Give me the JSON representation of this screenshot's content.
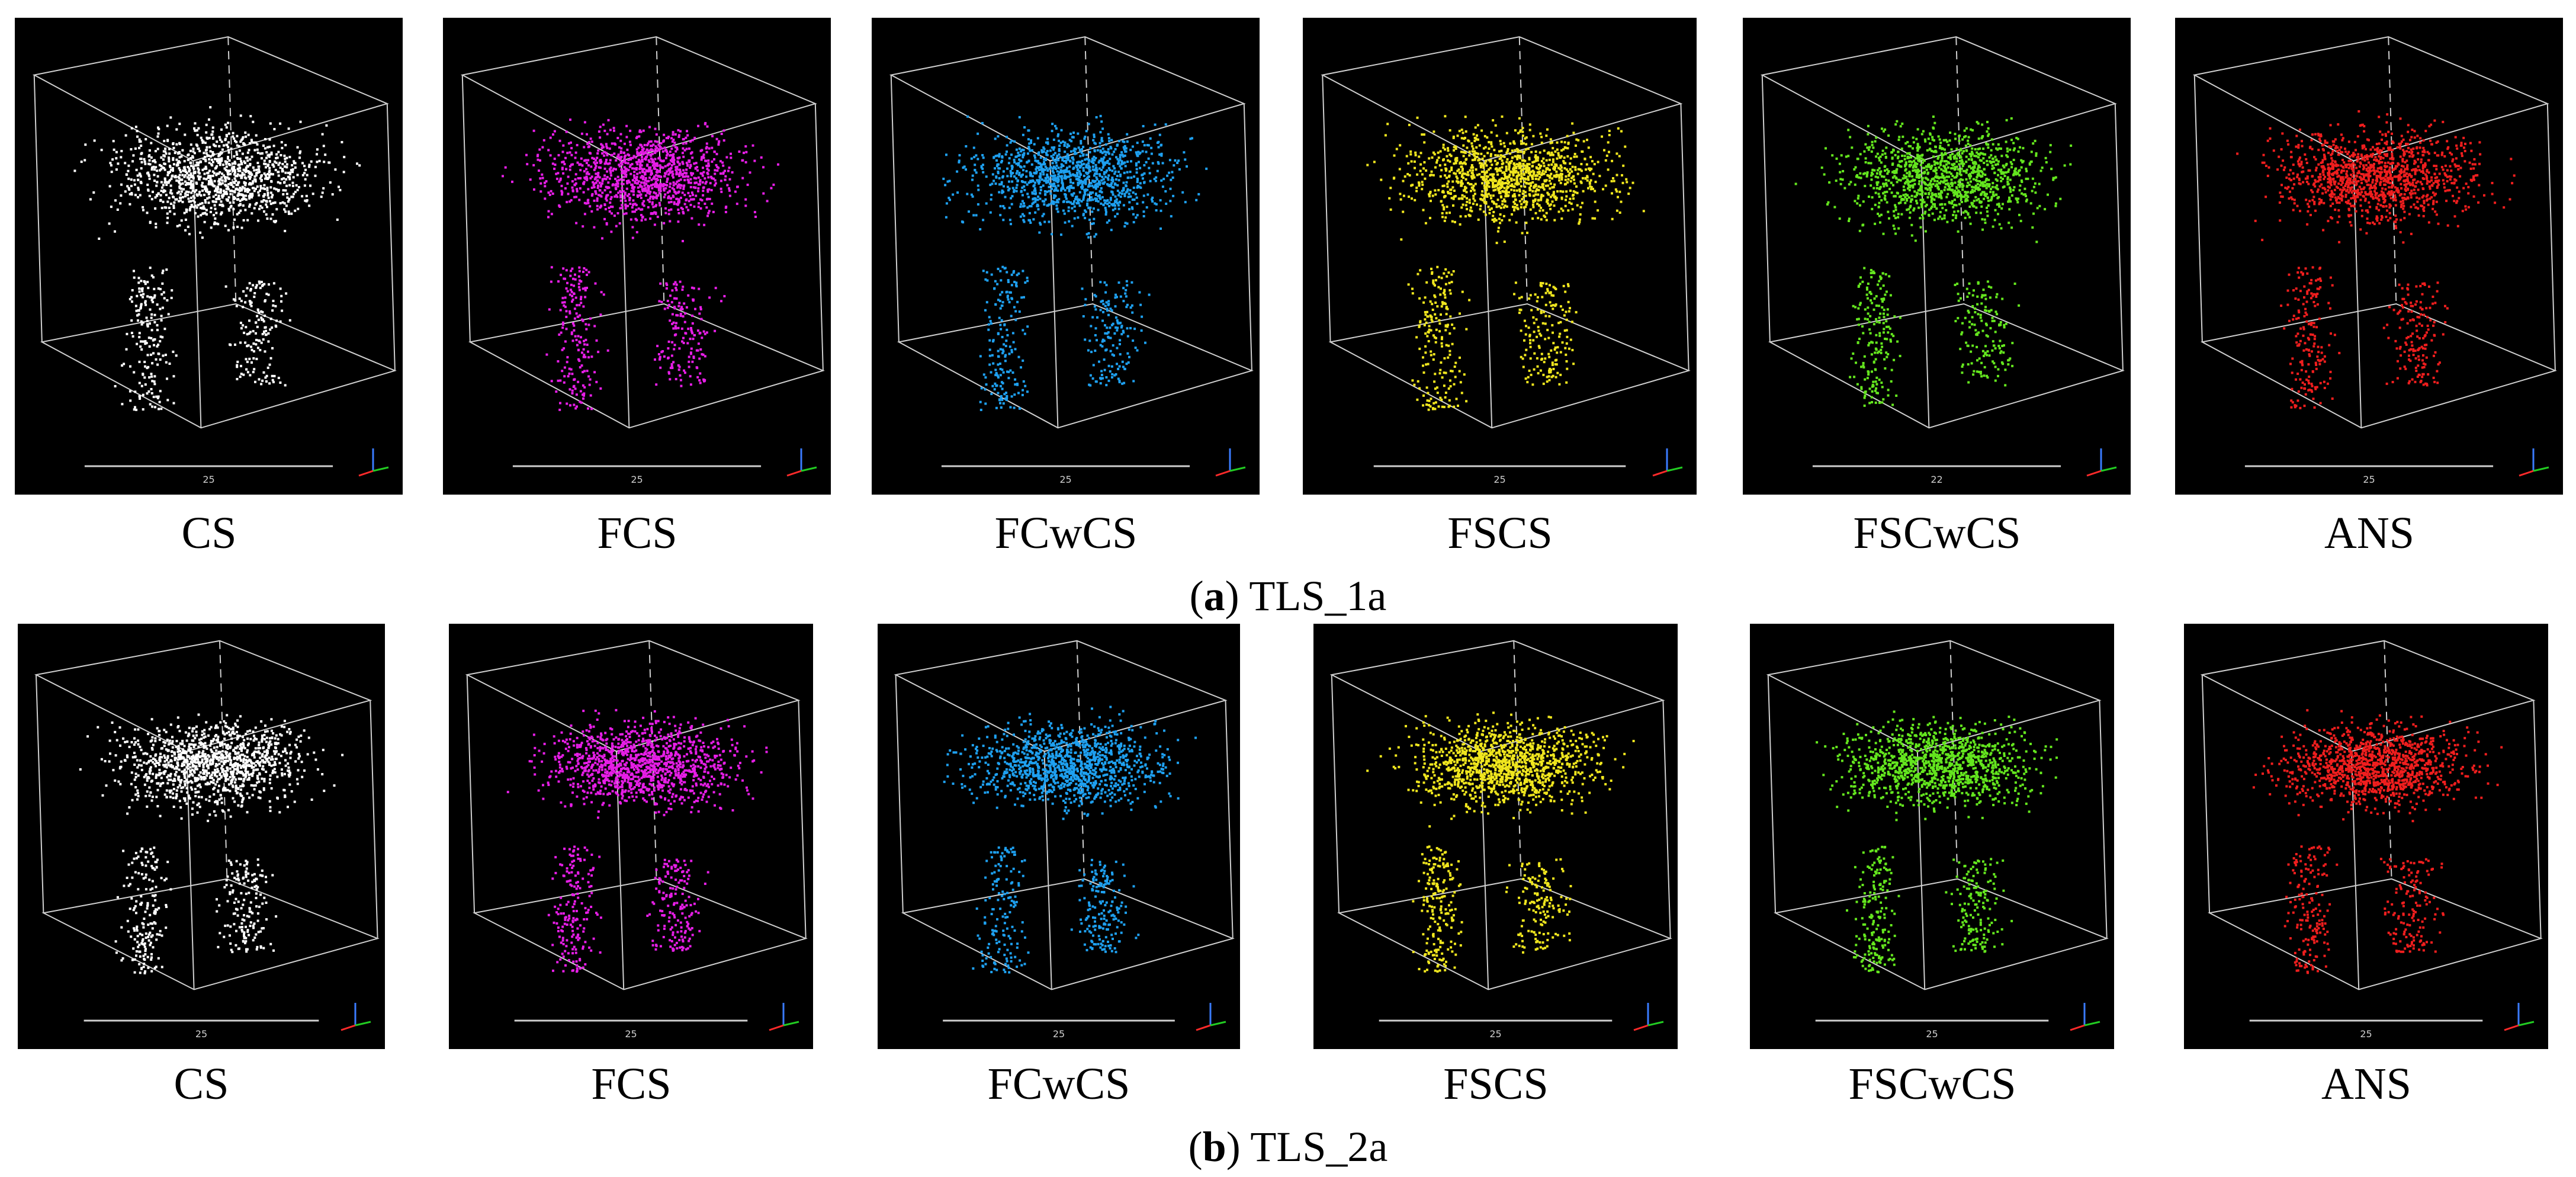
{
  "rows": [
    {
      "caption": {
        "letter": "a",
        "text": "TLS_1a"
      },
      "panels": [
        {
          "label": "CS",
          "color": "#ffffff",
          "scale_text": "25",
          "seed": 11
        },
        {
          "label": "FCS",
          "color": "#e61ee6",
          "scale_text": "25",
          "seed": 23
        },
        {
          "label": "FCwCS",
          "color": "#1ea0f0",
          "scale_text": "25",
          "seed": 37
        },
        {
          "label": "FSCS",
          "color": "#f0e61e",
          "scale_text": "25",
          "seed": 41
        },
        {
          "label": "FSCwCS",
          "color": "#64e61e",
          "scale_text": "22",
          "seed": 53
        },
        {
          "label": "ANS",
          "color": "#f01e1e",
          "scale_text": "25",
          "seed": 67
        }
      ]
    },
    {
      "caption": {
        "letter": "b",
        "text": "TLS_2a"
      },
      "panels": [
        {
          "label": "CS",
          "color": "#ffffff",
          "scale_text": "25",
          "seed": 71
        },
        {
          "label": "FCS",
          "color": "#e61ee6",
          "scale_text": "25",
          "seed": 83
        },
        {
          "label": "FCwCS",
          "color": "#1ea0f0",
          "scale_text": "25",
          "seed": 97
        },
        {
          "label": "FSCS",
          "color": "#f0e61e",
          "scale_text": "25",
          "seed": 101
        },
        {
          "label": "FSCwCS",
          "color": "#64e61e",
          "scale_text": "25",
          "seed": 113
        },
        {
          "label": "ANS",
          "color": "#f01e1e",
          "scale_text": "25",
          "seed": 127
        }
      ]
    }
  ],
  "axis_colors": {
    "x": "#ff2a2a",
    "y": "#22cc22",
    "z": "#3a7bff"
  }
}
